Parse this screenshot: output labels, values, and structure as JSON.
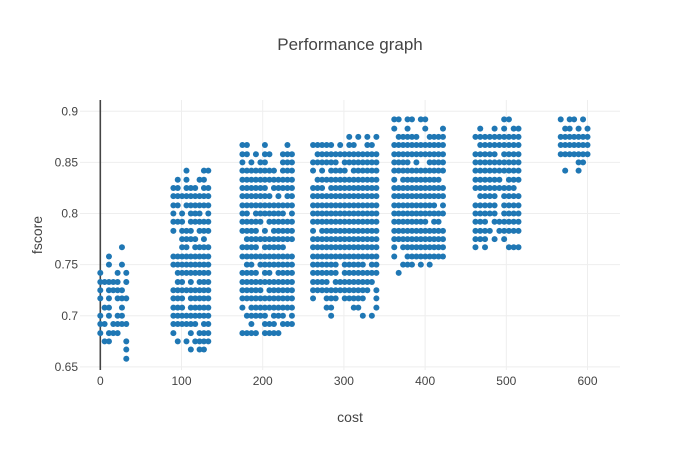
{
  "chart_data": {
    "type": "scatter",
    "title": "Performance graph",
    "xlabel": "cost",
    "ylabel": "fscore",
    "xlim": [
      -25,
      640
    ],
    "ylim": [
      0.647,
      0.911
    ],
    "x_ticks": [
      0,
      100,
      200,
      300,
      400,
      500,
      600
    ],
    "x_tick_labels": [
      "0",
      "100",
      "200",
      "300",
      "400",
      "500",
      "600"
    ],
    "y_ticks": [
      0.65,
      0.7,
      0.75,
      0.8,
      0.85,
      0.9
    ],
    "y_tick_labels": [
      "0.65",
      "0.7",
      "0.75",
      "0.8",
      "0.85",
      "0.9"
    ],
    "grid": true,
    "zero_line_x": true,
    "marker_color": "#1f77b4",
    "clusters": [
      {
        "x_min": 0,
        "x_max": 32,
        "y_min": 0.658,
        "y_max": 0.767,
        "ys": [
          0.658,
          0.667,
          0.675,
          0.683,
          0.692,
          0.7,
          0.708,
          0.717,
          0.725,
          0.733,
          0.742,
          0.75,
          0.758,
          0.767
        ],
        "density": 0.55
      },
      {
        "x_min": 90,
        "x_max": 133,
        "y_min": 0.667,
        "y_max": 0.842,
        "ys": [
          0.667,
          0.675,
          0.683,
          0.692,
          0.7,
          0.708,
          0.717,
          0.725,
          0.733,
          0.742,
          0.75,
          0.758,
          0.767,
          0.775,
          0.783,
          0.792,
          0.8,
          0.808,
          0.817,
          0.825,
          0.833,
          0.842
        ],
        "density": 0.85
      },
      {
        "x_min": 175,
        "x_max": 236,
        "y_min": 0.675,
        "y_max": 0.867,
        "ys": [
          0.675,
          0.683,
          0.692,
          0.7,
          0.708,
          0.717,
          0.725,
          0.733,
          0.742,
          0.75,
          0.758,
          0.767,
          0.775,
          0.783,
          0.792,
          0.8,
          0.808,
          0.817,
          0.825,
          0.833,
          0.842,
          0.85,
          0.858,
          0.867
        ],
        "density": 0.88
      },
      {
        "x_min": 262,
        "x_max": 340,
        "y_min": 0.7,
        "y_max": 0.875,
        "ys": [
          0.7,
          0.708,
          0.717,
          0.725,
          0.733,
          0.742,
          0.75,
          0.758,
          0.767,
          0.775,
          0.783,
          0.792,
          0.8,
          0.808,
          0.817,
          0.825,
          0.833,
          0.842,
          0.85,
          0.858,
          0.867,
          0.875
        ],
        "density": 0.92
      },
      {
        "x_min": 362,
        "x_max": 422,
        "y_min": 0.742,
        "y_max": 0.892,
        "ys": [
          0.742,
          0.75,
          0.758,
          0.767,
          0.775,
          0.783,
          0.792,
          0.8,
          0.808,
          0.817,
          0.825,
          0.833,
          0.842,
          0.85,
          0.858,
          0.867,
          0.875,
          0.883,
          0.892
        ],
        "density": 0.92
      },
      {
        "x_min": 462,
        "x_max": 515,
        "y_min": 0.767,
        "y_max": 0.892,
        "ys": [
          0.767,
          0.775,
          0.783,
          0.792,
          0.8,
          0.808,
          0.817,
          0.825,
          0.833,
          0.842,
          0.85,
          0.858,
          0.867,
          0.875,
          0.883,
          0.892
        ],
        "density": 0.9
      },
      {
        "x_min": 567,
        "x_max": 600,
        "y_min": 0.842,
        "y_max": 0.892,
        "ys": [
          0.842,
          0.85,
          0.858,
          0.867,
          0.875,
          0.883,
          0.892
        ],
        "density": 0.9
      }
    ]
  }
}
